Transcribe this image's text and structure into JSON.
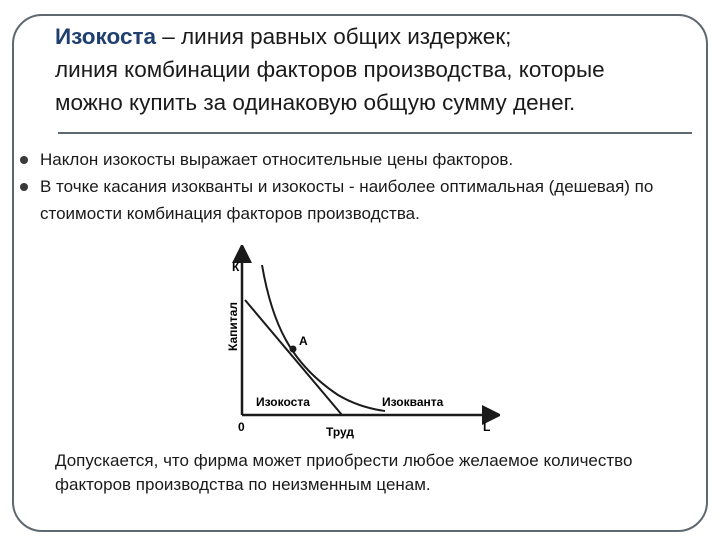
{
  "title": {
    "term": "Изокоста",
    "dash_def": " – линия равных общих издержек;",
    "line2": "линия комбинации факторов производства, которые",
    "line3": "можно купить за одинаковую общую сумму денег."
  },
  "bullets": [
    {
      "text": "Наклон изокосты выражает относительные цены факторов."
    },
    {
      "text": "В точке  касания изокванты и изокосты  - наиболее оптимальная (дешевая) по стоимости комбинация факторов производства."
    }
  ],
  "graph": {
    "y_axis_letter": "К",
    "y_axis_label": "Капитал",
    "x_axis_letter": "L",
    "x_axis_label": "Труд",
    "origin_label": "0",
    "point_label": "А",
    "isocost_label": "Изокоста",
    "isoquant_label": "Изокванта"
  },
  "note": "Допускается, что фирма может приобрести любое желаемое количество факторов производства по неизменным ценам.",
  "colors": {
    "frame": "#5f6770",
    "title_term": "#1f3f6e"
  }
}
